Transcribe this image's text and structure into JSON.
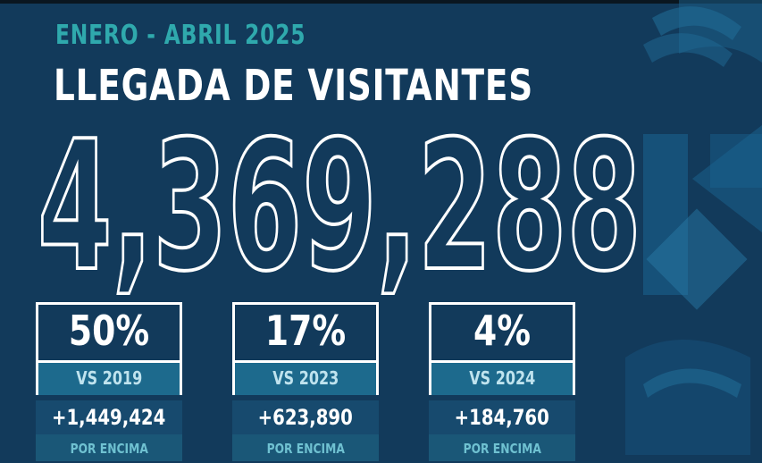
{
  "header": {
    "subtitle": "ENERO - ABRIL 2025",
    "title": "LLEGADA DE VISITANTES",
    "total": "4,369,288"
  },
  "stats": [
    {
      "percent": "50%",
      "vs": "VS 2019",
      "difference": "+1,449,424",
      "note": "POR ENCIMA"
    },
    {
      "percent": "17%",
      "vs": "VS 2023",
      "difference": "+623,890",
      "note": "POR ENCIMA"
    },
    {
      "percent": "4%",
      "vs": "VS 2024",
      "difference": "+184,760",
      "note": "POR ENCIMA"
    }
  ],
  "colors": {
    "background": "#123a5b",
    "accent": "#2fa9ad",
    "text": "#ffffff"
  }
}
